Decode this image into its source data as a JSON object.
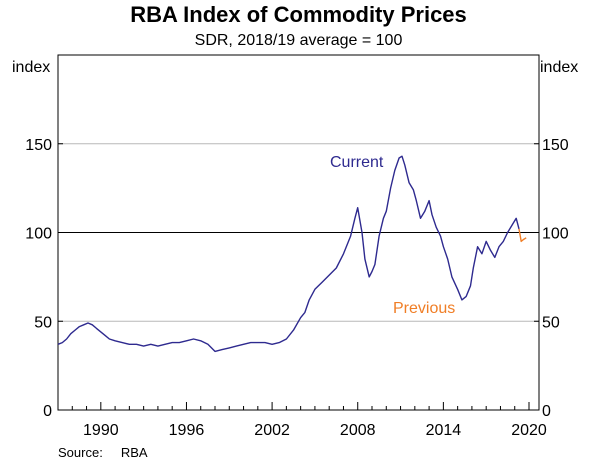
{
  "chart_data": {
    "type": "line",
    "title": "RBA Index of Commodity Prices",
    "subtitle": "SDR, 2018/19 average = 100",
    "ylabel_left": "index",
    "ylabel_right": "index",
    "xlim": [
      1987,
      2020.7
    ],
    "ylim": [
      0,
      200
    ],
    "yticks": [
      0,
      50,
      100,
      150
    ],
    "xticks": [
      1990,
      1996,
      2002,
      2008,
      2014,
      2020
    ],
    "grid": "horizontal",
    "reference_line": 100,
    "series": [
      {
        "name": "Current",
        "color": "#2e2a8f",
        "x": [
          1987.0,
          1987.3,
          1987.6,
          1987.9,
          1988.2,
          1988.5,
          1988.8,
          1989.1,
          1989.4,
          1989.7,
          1990.0,
          1990.3,
          1990.6,
          1991.0,
          1991.5,
          1992.0,
          1992.5,
          1993.0,
          1993.5,
          1994.0,
          1994.5,
          1995.0,
          1995.5,
          1996.0,
          1996.5,
          1997.0,
          1997.5,
          1998.0,
          1998.5,
          1999.0,
          1999.5,
          2000.0,
          2000.5,
          2001.0,
          2001.5,
          2002.0,
          2002.5,
          2003.0,
          2003.5,
          2004.0,
          2004.3,
          2004.6,
          2005.0,
          2005.5,
          2006.0,
          2006.5,
          2007.0,
          2007.5,
          2007.8,
          2008.0,
          2008.3,
          2008.5,
          2008.8,
          2009.0,
          2009.2,
          2009.5,
          2009.8,
          2010.0,
          2010.3,
          2010.6,
          2010.9,
          2011.1,
          2011.3,
          2011.6,
          2011.9,
          2012.1,
          2012.4,
          2012.7,
          2013.0,
          2013.2,
          2013.5,
          2013.8,
          2014.0,
          2014.3,
          2014.6,
          2015.0,
          2015.3,
          2015.6,
          2015.9,
          2016.1,
          2016.4,
          2016.7,
          2017.0,
          2017.3,
          2017.6,
          2017.9,
          2018.2,
          2018.5,
          2018.8,
          2019.1,
          2019.3
        ],
        "y": [
          37,
          38,
          40,
          43,
          45,
          47,
          48,
          49,
          48,
          46,
          44,
          42,
          40,
          39,
          38,
          37,
          37,
          36,
          37,
          36,
          37,
          38,
          38,
          39,
          40,
          39,
          37,
          33,
          34,
          35,
          36,
          37,
          38,
          38,
          38,
          37,
          38,
          40,
          45,
          52,
          55,
          62,
          68,
          72,
          76,
          80,
          88,
          98,
          108,
          114,
          100,
          85,
          75,
          78,
          82,
          98,
          108,
          112,
          125,
          135,
          142,
          143,
          138,
          128,
          124,
          118,
          108,
          112,
          118,
          110,
          103,
          98,
          92,
          85,
          75,
          68,
          62,
          64,
          70,
          80,
          92,
          88,
          95,
          90,
          86,
          92,
          95,
          100,
          104,
          108,
          102
        ],
        "label": "Current"
      },
      {
        "name": "Previous",
        "color": "#f07e26",
        "x": [
          2019.3,
          2019.45,
          2019.6,
          2019.8
        ],
        "y": [
          102,
          95,
          96,
          97
        ],
        "label": "Previous"
      }
    ]
  },
  "source": {
    "label": "Source:",
    "value": "RBA"
  }
}
